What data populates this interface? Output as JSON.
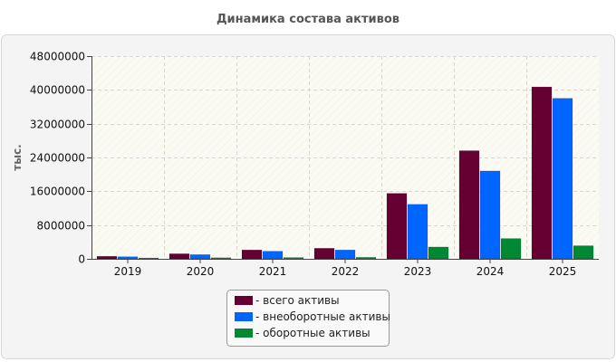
{
  "chart_data": {
    "type": "bar",
    "title": "Динамика состава активов",
    "ylabel": "тыс.",
    "xlabel": "",
    "categories": [
      "2019",
      "2020",
      "2021",
      "2022",
      "2023",
      "2024",
      "2025"
    ],
    "ylim": [
      0,
      48000000
    ],
    "yticks": [
      0,
      8000000,
      16000000,
      24000000,
      32000000,
      40000000,
      48000000
    ],
    "ytick_labels": [
      "0",
      "8000000",
      "16000000",
      "24000000",
      "32000000",
      "40000000",
      "48000000"
    ],
    "grid": true,
    "legend_position": "bottom",
    "series": [
      {
        "name": "- всего активы",
        "color": "#660033",
        "values": [
          600000,
          1200000,
          2100000,
          2500000,
          15500000,
          25600000,
          40700000
        ]
      },
      {
        "name": "- внеоборотные активы",
        "color": "#0066ff",
        "values": [
          500000,
          1000000,
          1800000,
          2100000,
          12900000,
          20800000,
          38000000
        ]
      },
      {
        "name": "- оборотные активы",
        "color": "#008833",
        "values": [
          200000,
          250000,
          300000,
          350000,
          2800000,
          4800000,
          3100000
        ]
      }
    ]
  }
}
